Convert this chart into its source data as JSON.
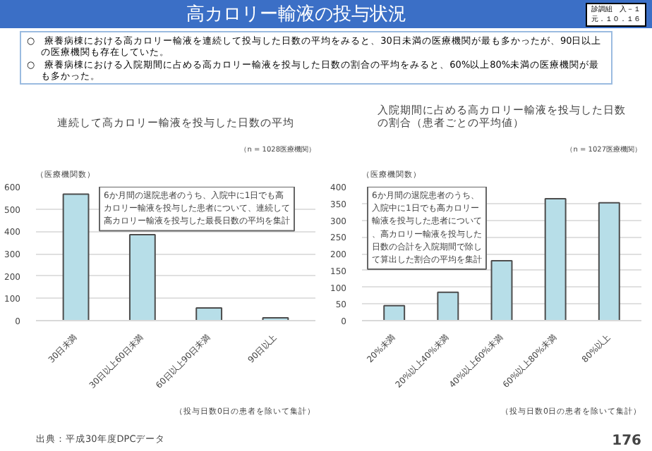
{
  "chart_data": [
    {
      "type": "bar",
      "title": "連続して高カロリー輸液を投与した日数の平均",
      "subtitle": "（n = 1028医療機関）",
      "ylabel": "（医療機関数）",
      "categories": [
        "30日未満",
        "30日以上60日未満",
        "60日以上90日未満",
        "90日以上"
      ],
      "series": [
        {
          "color": "#b7dee8",
          "values": [
            567,
            385,
            57,
            13
          ]
        }
      ],
      "ylim": [
        0,
        600
      ],
      "yticks": [
        0,
        100,
        200,
        300,
        400,
        500,
        600
      ],
      "grid": "y",
      "annotations": [
        "高カロリー輸液の投与状況",
        "診調組　入－１",
        "元．１０．１６",
        "○　療養病棟における高カロリー輸液を連続して投与した日数の平均をみると、30日未満の医療機関が最も多かったが、90日以上の医療機関も存在していた。",
        "○　療養病棟における入院期間に占める高カロリー輸液を投与した日数の割合の平均をみると、60%以上80%未満の医療機関が最も多かった。",
        "6か月間の退院患者のうち、入院中に1日でも高カロリー輸液を投与した患者について、連続して高カロリー輸液を投与した最長日数の平均を集計",
        "（投与日数0日の患者を除いて集計）",
        "出典：平成30年度DPCデータ"
      ]
    },
    {
      "type": "bar",
      "title": "入院期間に占める高カロリー輸液を投与した日数の割合（患者ごとの平均値）",
      "subtitle": "（n = 1027医療機関）",
      "ylabel": "（医療機関数）",
      "categories": [
        "20%未満",
        "20%以上40%未満",
        "40%以上60%未満",
        "60%以上80%未満",
        "80%以上"
      ],
      "series": [
        {
          "color": "#b7dee8",
          "values": [
            45,
            85,
            179,
            364,
            352
          ]
        }
      ],
      "ylim": [
        0,
        400
      ],
      "yticks": [
        0,
        50,
        100,
        150,
        200,
        250,
        300,
        350,
        400
      ],
      "grid": "y",
      "annotations": [
        "6か月間の退院患者のうち、入院中に1日でも高カロリー輸液を投与した患者について、高カロリー輸液を投与した日数の合計を入院期間で除して算出した割合の平均を集計",
        "（投与日数0日の患者を除いて集計）",
        "176"
      ]
    }
  ]
}
